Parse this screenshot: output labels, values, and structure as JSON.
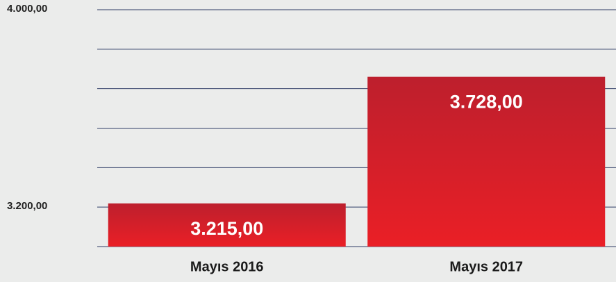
{
  "chart_data": {
    "type": "bar",
    "categories": [
      "Mayıs 2016",
      "Mayıs 2017"
    ],
    "values": [
      3215,
      3728
    ],
    "value_labels": [
      "3.215,00",
      "3.728,00"
    ],
    "color": "#e21f26",
    "ylim": [
      3040,
      4000
    ],
    "yticks": [
      {
        "value": 3200,
        "label": "3.200,00"
      },
      {
        "value": 4000,
        "label": "4.000,00"
      }
    ],
    "minor_yticks": [
      3360,
      3520,
      3680,
      3840
    ],
    "grid": true
  }
}
